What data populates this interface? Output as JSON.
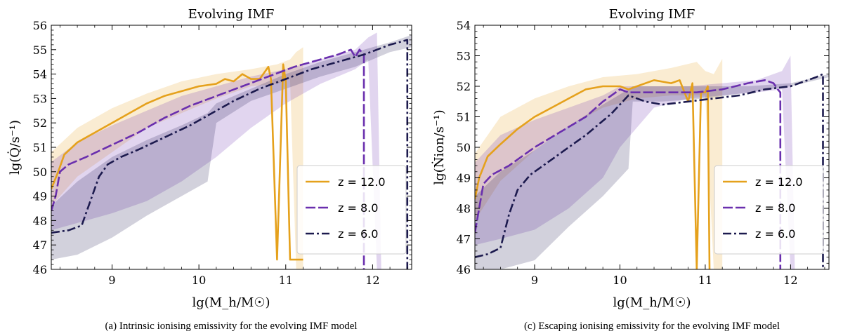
{
  "chart_data": [
    {
      "type": "line",
      "title": "Evolving IMF",
      "xlabel": "lg(M_h/M☉)",
      "ylabel": "lg(Q̇/s⁻¹)",
      "caption": "(a) Intrinsic ionising emissivity for the evolving IMF model",
      "xlim": [
        8.3,
        12.45
      ],
      "ylim": [
        46,
        56
      ],
      "xticks": [
        9,
        10,
        11,
        12
      ],
      "xtick_labels": [
        "9",
        "10",
        "11",
        "12"
      ],
      "yticks": [
        46,
        47,
        48,
        49,
        50,
        51,
        52,
        53,
        54,
        55,
        56
      ],
      "ytick_labels": [
        "46",
        "47",
        "48",
        "49",
        "50",
        "51",
        "52",
        "53",
        "54",
        "55",
        "56"
      ],
      "legend": {
        "placement": "lower-right",
        "entries": [
          "z = 12.0",
          "z = 8.0",
          "z = 6.0"
        ]
      },
      "series": [
        {
          "name": "z = 12.0",
          "color": "#E5A11C",
          "dash": "solid",
          "x": [
            8.3,
            8.38,
            8.45,
            8.6,
            8.8,
            9.0,
            9.2,
            9.4,
            9.6,
            9.8,
            10.0,
            10.2,
            10.3,
            10.4,
            10.5,
            10.6,
            10.7,
            10.8,
            10.83,
            10.9,
            10.97,
            11.0,
            11.05,
            11.1,
            11.2
          ],
          "y": [
            49.3,
            50.0,
            50.7,
            51.2,
            51.6,
            52.0,
            52.4,
            52.8,
            53.1,
            53.3,
            53.5,
            53.6,
            53.8,
            53.7,
            54.0,
            53.8,
            53.8,
            54.3,
            53.8,
            46.4,
            54.4,
            53.7,
            46.4,
            46.4,
            46.4
          ],
          "band_x": [
            8.3,
            8.6,
            9.0,
            9.4,
            9.8,
            10.2,
            10.6,
            10.9,
            11.05,
            11.12,
            11.2
          ],
          "band_upper": [
            50.8,
            51.8,
            52.6,
            53.2,
            53.7,
            54.0,
            54.2,
            54.4,
            54.6,
            54.9,
            55.1
          ],
          "band_lower": [
            48.6,
            49.8,
            50.8,
            51.8,
            52.4,
            53.0,
            53.5,
            53.6,
            53.8,
            46.0,
            46.0
          ]
        },
        {
          "name": "z = 8.0",
          "color": "#6A2FAE",
          "dash": "dashed",
          "x": [
            8.3,
            8.35,
            8.4,
            8.5,
            8.7,
            9.0,
            9.3,
            9.6,
            9.9,
            10.2,
            10.5,
            10.8,
            11.1,
            11.4,
            11.6,
            11.75,
            11.8,
            11.85,
            11.9,
            11.9
          ],
          "y": [
            48.4,
            49.0,
            50.0,
            50.3,
            50.6,
            51.1,
            51.6,
            52.2,
            52.7,
            53.1,
            53.5,
            53.9,
            54.3,
            54.6,
            54.8,
            55.0,
            54.7,
            55.0,
            54.8,
            46.0
          ],
          "band_x": [
            8.3,
            8.6,
            9.0,
            9.4,
            9.8,
            10.2,
            10.6,
            11.0,
            11.4,
            11.8,
            11.95,
            12.05,
            12.1
          ],
          "band_upper": [
            50.4,
            51.2,
            51.9,
            52.5,
            53.1,
            53.5,
            53.9,
            54.2,
            54.6,
            55.0,
            55.5,
            55.7,
            46.0
          ],
          "band_lower": [
            47.6,
            47.9,
            48.3,
            48.8,
            49.6,
            50.6,
            51.8,
            52.8,
            53.6,
            54.2,
            54.6,
            46.0,
            46.0
          ]
        },
        {
          "name": "z = 6.0",
          "color": "#1C1A4E",
          "dash": "dashdot",
          "x": [
            8.3,
            8.5,
            8.65,
            8.75,
            8.85,
            8.95,
            9.1,
            9.3,
            9.6,
            9.9,
            10.1,
            10.4,
            10.7,
            11.0,
            11.3,
            11.6,
            11.9,
            12.2,
            12.4,
            12.4
          ],
          "y": [
            47.5,
            47.6,
            47.8,
            48.8,
            49.8,
            50.3,
            50.6,
            50.9,
            51.4,
            51.9,
            52.3,
            52.9,
            53.4,
            53.8,
            54.2,
            54.5,
            54.8,
            55.2,
            55.4,
            46.0
          ],
          "band_x": [
            8.3,
            8.6,
            9.0,
            9.4,
            9.8,
            10.1,
            10.2,
            10.6,
            11.0,
            11.4,
            11.8,
            12.2,
            12.45
          ],
          "band_upper": [
            48.6,
            49.6,
            50.6,
            51.3,
            51.9,
            52.4,
            52.8,
            53.4,
            54.0,
            54.5,
            54.9,
            55.3,
            55.6
          ],
          "band_lower": [
            46.4,
            46.6,
            47.3,
            48.2,
            49.0,
            49.6,
            52.0,
            52.9,
            53.4,
            53.9,
            54.3,
            54.9,
            55.1
          ]
        }
      ]
    },
    {
      "type": "line",
      "title": "Evolving IMF",
      "xlabel": "lg(M_h/M☉)",
      "ylabel": "lg(Ṅion/s⁻¹)",
      "caption": "(c) Escaping ionising emissivity for the evolving IMF model",
      "xlim": [
        8.3,
        12.45
      ],
      "ylim": [
        46,
        54
      ],
      "xticks": [
        9,
        10,
        11,
        12
      ],
      "xtick_labels": [
        "9",
        "10",
        "11",
        "12"
      ],
      "yticks": [
        46,
        47,
        48,
        49,
        50,
        51,
        52,
        53,
        54
      ],
      "ytick_labels": [
        "46",
        "47",
        "48",
        "49",
        "50",
        "51",
        "52",
        "53",
        "54"
      ],
      "legend": {
        "placement": "lower-right",
        "entries": [
          "z = 12.0",
          "z = 8.0",
          "z = 6.0"
        ]
      },
      "series": [
        {
          "name": "z = 12.0",
          "color": "#E5A11C",
          "dash": "solid",
          "x": [
            8.3,
            8.35,
            8.45,
            8.6,
            8.8,
            9.0,
            9.2,
            9.4,
            9.6,
            9.8,
            9.9,
            10.0,
            10.1,
            10.2,
            10.4,
            10.6,
            10.7,
            10.8,
            10.85,
            10.9,
            10.95,
            11.0,
            11.03,
            11.05
          ],
          "y": [
            48.3,
            49.0,
            49.7,
            50.1,
            50.6,
            51.0,
            51.3,
            51.6,
            51.9,
            52.0,
            52.0,
            52.0,
            51.9,
            52.0,
            52.2,
            52.1,
            52.2,
            51.5,
            52.1,
            46.0,
            51.8,
            51.8,
            52.0,
            46.0
          ],
          "band_x": [
            8.3,
            8.6,
            9.0,
            9.4,
            9.8,
            10.2,
            10.6,
            10.9,
            11.0,
            11.1,
            11.2
          ],
          "band_upper": [
            49.8,
            51.0,
            51.6,
            52.0,
            52.3,
            52.4,
            52.6,
            52.8,
            52.5,
            52.4,
            52.9
          ],
          "band_lower": [
            47.6,
            48.9,
            49.9,
            50.7,
            51.3,
            51.6,
            51.7,
            51.7,
            51.7,
            46.0,
            46.0
          ]
        },
        {
          "name": "z = 8.0",
          "color": "#6A2FAE",
          "dash": "dashed",
          "x": [
            8.3,
            8.35,
            8.4,
            8.5,
            8.7,
            9.0,
            9.3,
            9.6,
            9.8,
            10.0,
            10.1,
            10.3,
            10.6,
            10.9,
            11.2,
            11.5,
            11.7,
            11.8,
            11.85,
            11.88,
            11.88
          ],
          "y": [
            47.2,
            48.0,
            48.8,
            49.1,
            49.4,
            50.0,
            50.5,
            51.0,
            51.5,
            51.9,
            51.8,
            51.8,
            51.8,
            51.8,
            51.9,
            52.1,
            52.2,
            52.1,
            51.9,
            51.8,
            46.0
          ],
          "band_x": [
            8.3,
            8.6,
            9.0,
            9.4,
            9.8,
            10.0,
            10.4,
            10.8,
            11.2,
            11.6,
            11.9,
            12.0,
            12.05
          ],
          "band_upper": [
            49.5,
            50.4,
            50.9,
            51.3,
            51.7,
            52.0,
            52.0,
            52.0,
            52.1,
            52.2,
            52.5,
            53.0,
            46.0
          ],
          "band_lower": [
            46.8,
            47.0,
            47.3,
            48.0,
            49.0,
            50.0,
            51.3,
            51.6,
            51.7,
            51.8,
            51.9,
            46.0,
            46.0
          ]
        },
        {
          "name": "z = 6.0",
          "color": "#1C1A4E",
          "dash": "dashdot",
          "x": [
            8.3,
            8.45,
            8.6,
            8.7,
            8.8,
            8.95,
            9.1,
            9.3,
            9.6,
            9.9,
            10.1,
            10.3,
            10.5,
            10.8,
            11.1,
            11.4,
            11.7,
            12.0,
            12.3,
            12.38,
            12.38
          ],
          "y": [
            46.4,
            46.5,
            46.7,
            47.8,
            48.6,
            49.1,
            49.4,
            49.8,
            50.4,
            51.1,
            51.7,
            51.5,
            51.4,
            51.5,
            51.6,
            51.7,
            51.9,
            52.0,
            52.3,
            52.4,
            46.0
          ],
          "band_x": [
            8.3,
            8.6,
            9.0,
            9.4,
            9.8,
            10.1,
            10.15,
            10.5,
            11.0,
            11.5,
            12.0,
            12.3,
            12.45
          ],
          "band_upper": [
            48.4,
            49.2,
            49.9,
            50.7,
            51.4,
            51.9,
            52.0,
            52.0,
            52.0,
            52.0,
            52.1,
            52.3,
            52.4
          ],
          "band_lower": [
            46.0,
            46.0,
            46.3,
            47.4,
            48.4,
            49.3,
            51.5,
            51.5,
            51.6,
            51.8,
            52.0,
            52.2,
            52.3
          ]
        }
      ]
    }
  ]
}
